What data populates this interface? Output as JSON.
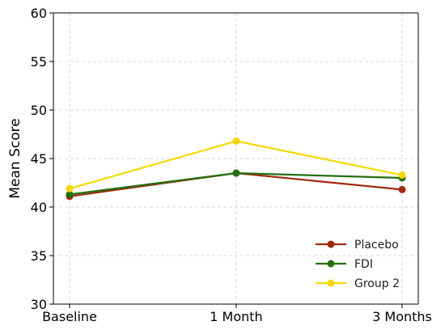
{
  "chart_data": {
    "type": "line",
    "title": "",
    "xlabel": "",
    "ylabel": "Mean Score",
    "categories": [
      "Baseline",
      "1 Month",
      "3 Months"
    ],
    "ylim": [
      30,
      60
    ],
    "yticks": [
      30,
      35,
      40,
      45,
      50,
      55,
      60
    ],
    "grid": true,
    "legend_position": "lower-right",
    "series": [
      {
        "name": "Placebo",
        "color": "#a0290f",
        "values": [
          41.1,
          43.5,
          41.8
        ]
      },
      {
        "name": "FDI",
        "color": "#23700f",
        "values": [
          41.3,
          43.5,
          43.0
        ]
      },
      {
        "name": "Group 2",
        "color": "#f5d800",
        "values": [
          41.9,
          46.8,
          43.3
        ]
      }
    ]
  }
}
